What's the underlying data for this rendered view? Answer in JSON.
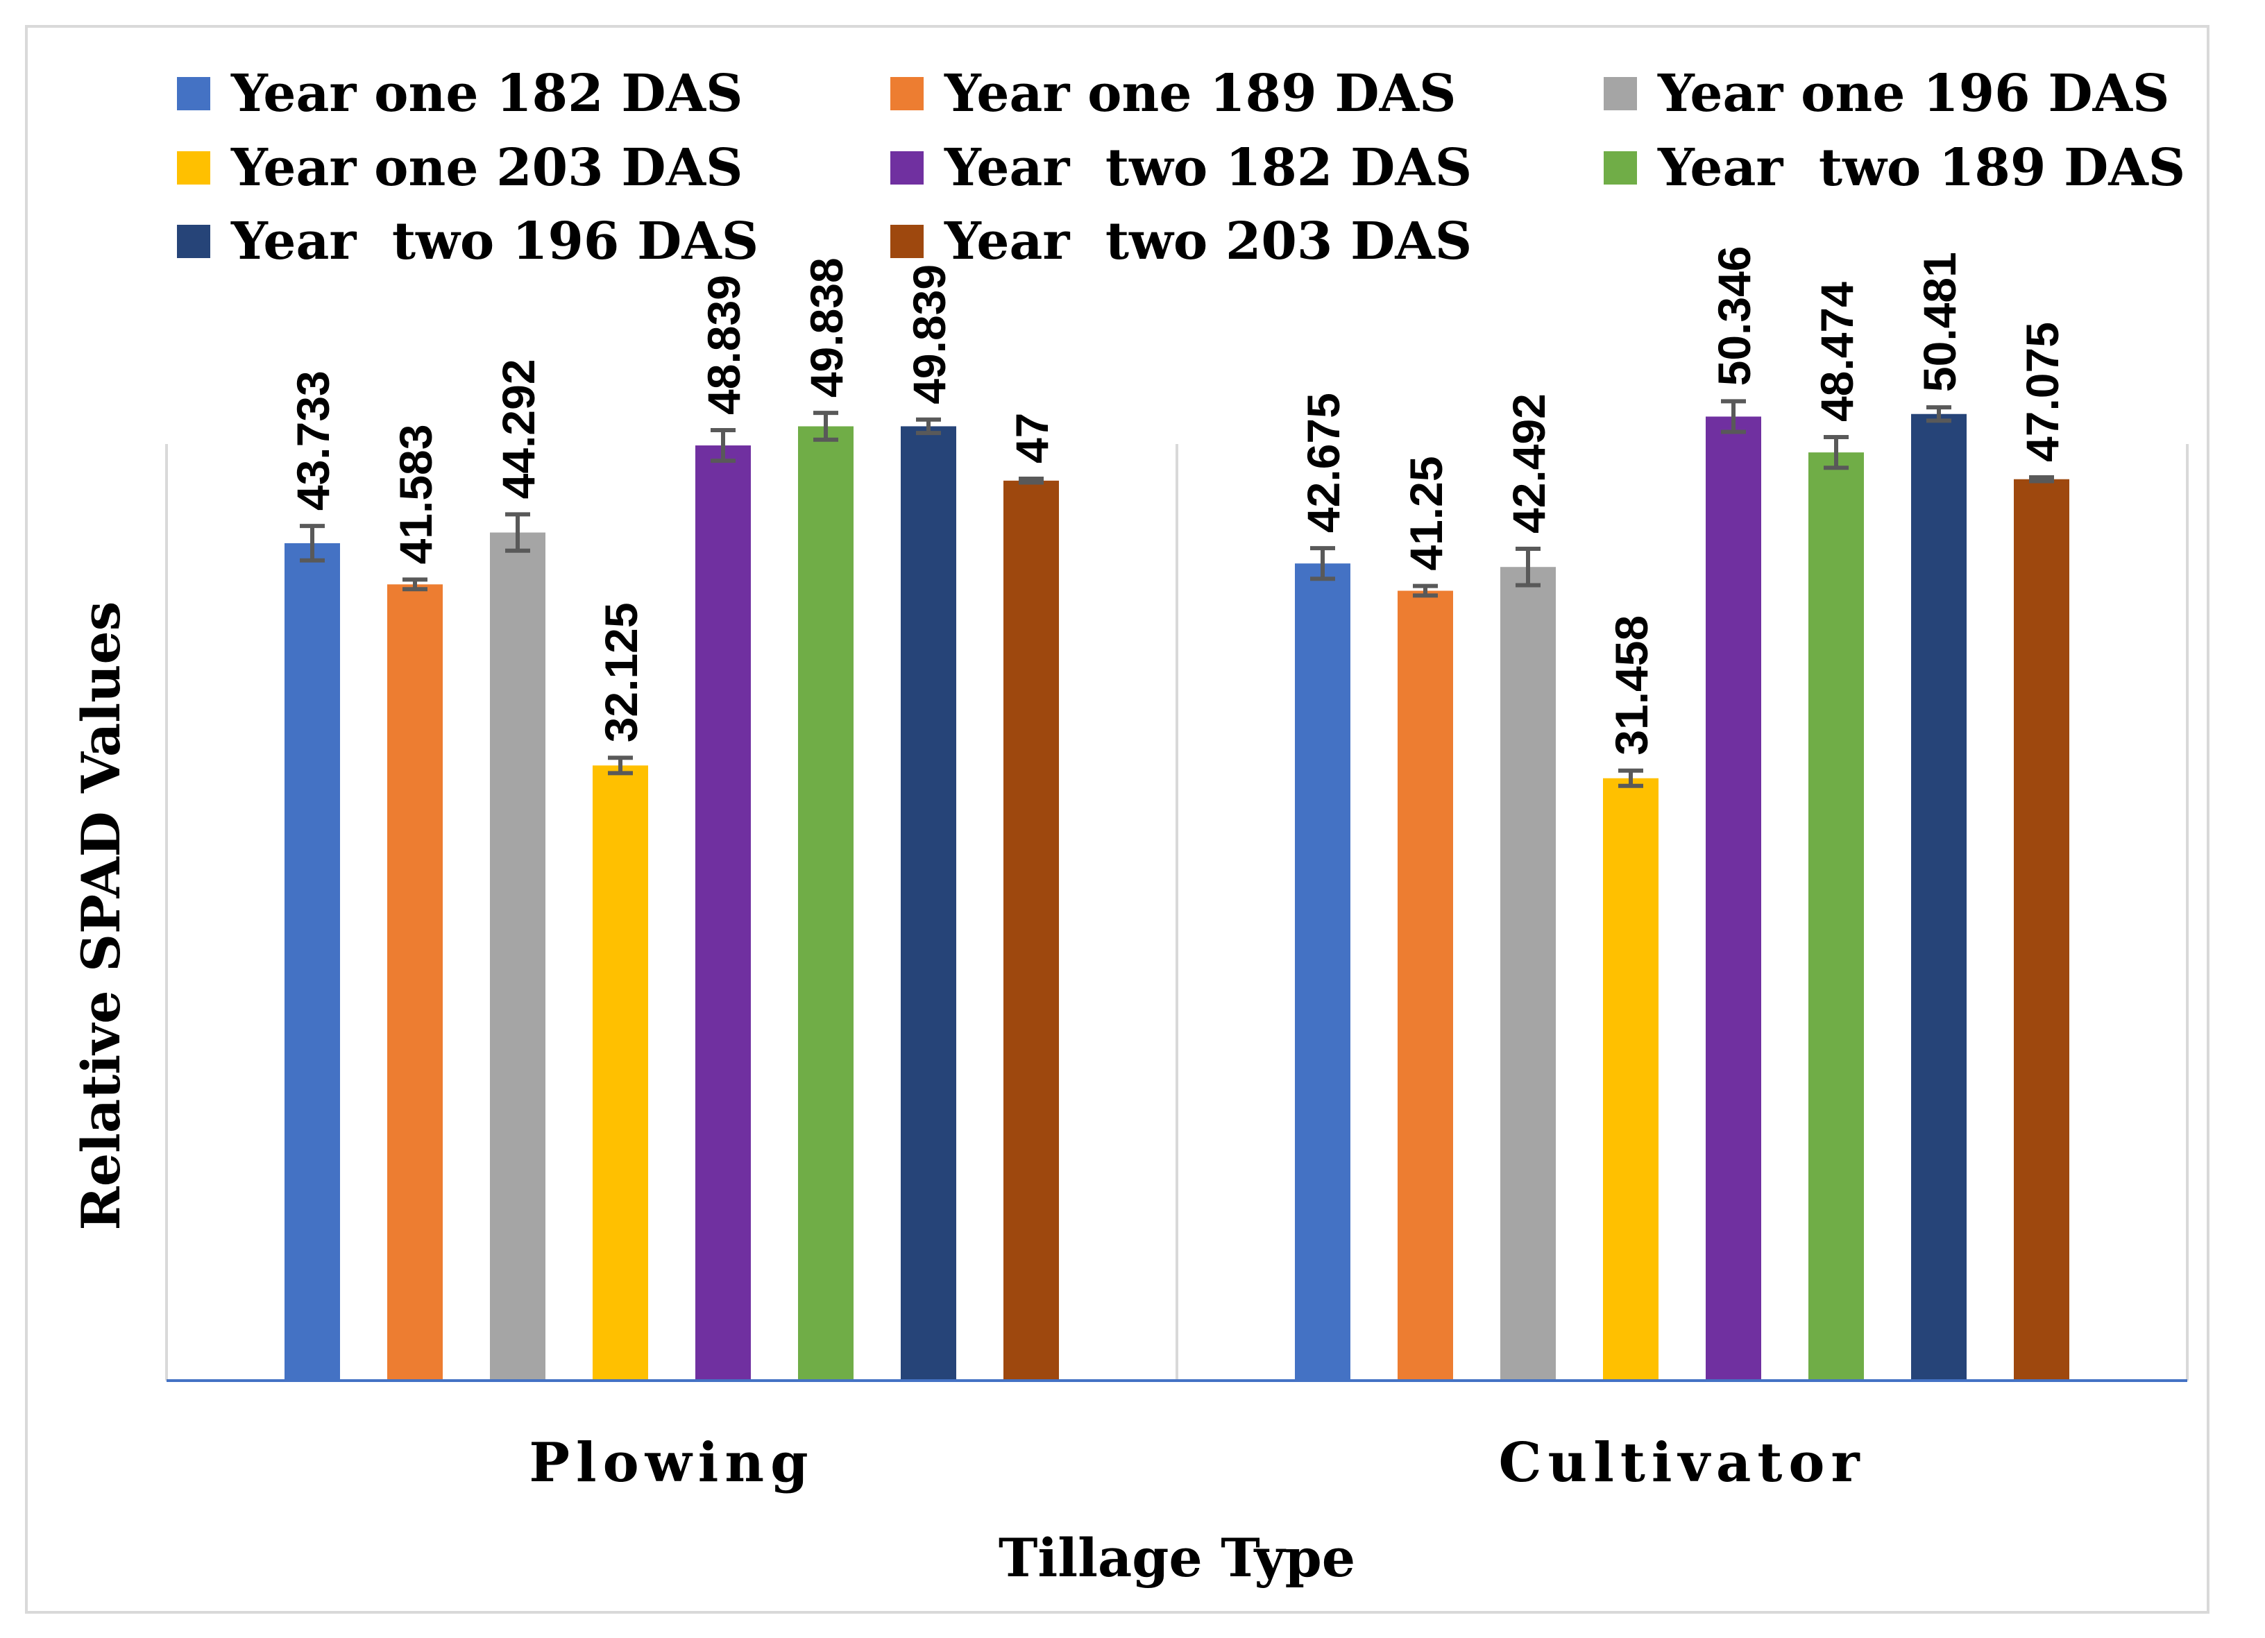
{
  "chart_data": {
    "type": "bar",
    "title": "",
    "xlabel": "Tillage Type",
    "ylabel": "Relative SPAD  Values",
    "categories": [
      "Plowing",
      "Cultivator"
    ],
    "ylim": [
      0,
      56
    ],
    "grid": false,
    "legend_position": "top",
    "series": [
      {
        "name": "Year one 182 DAS",
        "color": "#4472C4",
        "values": [
          43.733,
          42.675
        ],
        "labels": [
          "43.733",
          "42.675"
        ],
        "errors": [
          0.9,
          0.8
        ]
      },
      {
        "name": "Year one 189 DAS",
        "color": "#ED7D31",
        "values": [
          41.583,
          41.25
        ],
        "labels": [
          "41.583",
          "41.25"
        ],
        "errors": [
          0.25,
          0.25
        ]
      },
      {
        "name": "Year one 196 DAS",
        "color": "#A5A5A5",
        "values": [
          44.292,
          42.492
        ],
        "labels": [
          "44.292",
          "42.492"
        ],
        "errors": [
          0.95,
          0.95
        ]
      },
      {
        "name": "Year one 203 DAS",
        "color": "#FFC000",
        "values": [
          32.125,
          31.458
        ],
        "labels": [
          "32.125",
          "31.458"
        ],
        "errors": [
          0.4,
          0.4
        ]
      },
      {
        "name": "Year  two 182 DAS",
        "color": "#7030A0",
        "values": [
          48.839,
          50.346
        ],
        "labels": [
          "48.839",
          "50.346"
        ],
        "errors": [
          0.8,
          0.8
        ]
      },
      {
        "name": "Year  two 189 DAS",
        "color": "#70AD47",
        "values": [
          49.838,
          48.474
        ],
        "labels": [
          "49.838",
          "48.474"
        ],
        "errors": [
          0.7,
          0.8
        ]
      },
      {
        "name": "Year  two 196 DAS",
        "color": "#264478",
        "values": [
          49.839,
          50.481
        ],
        "labels": [
          "49.839",
          "50.481"
        ],
        "errors": [
          0.35,
          0.35
        ]
      },
      {
        "name": "Year  two 203 DAS",
        "color": "#9E480E",
        "values": [
          47.0,
          47.075
        ],
        "labels": [
          "47",
          "47.075"
        ],
        "errors": [
          0.1,
          0.1
        ]
      }
    ],
    "error_bar_color": "#595959",
    "baseline_color": "#4472C4",
    "divider_color": "#d9d9d9"
  }
}
